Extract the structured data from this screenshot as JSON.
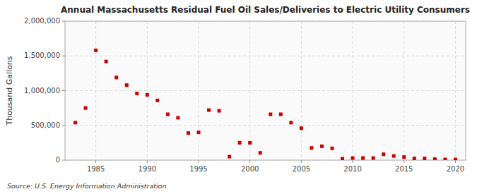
{
  "chart_data": {
    "type": "scatter",
    "title": "Annual Massachusetts Residual Fuel Oil Sales/Deliveries to Electric Utility Consumers",
    "ylabel": "Thousand Gallons",
    "annotations": [
      "Source: U.S. Energy Information Administration"
    ],
    "x": [
      1983,
      1984,
      1985,
      1986,
      1987,
      1988,
      1989,
      1990,
      1991,
      1992,
      1993,
      1994,
      1995,
      1996,
      1997,
      1998,
      1999,
      2000,
      2001,
      2002,
      2003,
      2004,
      2005,
      2006,
      2007,
      2008,
      2009,
      2010,
      2011,
      2012,
      2013,
      2014,
      2015,
      2016,
      2017,
      2018,
      2019,
      2020
    ],
    "values": [
      540000,
      750000,
      1580000,
      1420000,
      1190000,
      1080000,
      960000,
      940000,
      860000,
      660000,
      610000,
      390000,
      400000,
      720000,
      710000,
      50000,
      250000,
      250000,
      105000,
      660000,
      660000,
      540000,
      460000,
      175000,
      200000,
      170000,
      20000,
      30000,
      30000,
      30000,
      85000,
      60000,
      45000,
      25000,
      25000,
      15000,
      10000,
      10000
    ],
    "color": "#cc0000",
    "marker": "square",
    "xlim": [
      1982,
      2021
    ],
    "ylim": [
      0,
      2000000
    ],
    "xticks": [
      1985,
      1990,
      1995,
      2000,
      2005,
      2010,
      2015,
      2020
    ],
    "yticks": [
      0,
      {
        "value": 500000,
        "label": "500,000"
      },
      {
        "value": 1000000,
        "label": "1,000,000"
      },
      {
        "value": 1500000,
        "label": "1,500,000"
      },
      {
        "value": 2000000,
        "label": "2,000,000"
      }
    ],
    "grid": true
  }
}
